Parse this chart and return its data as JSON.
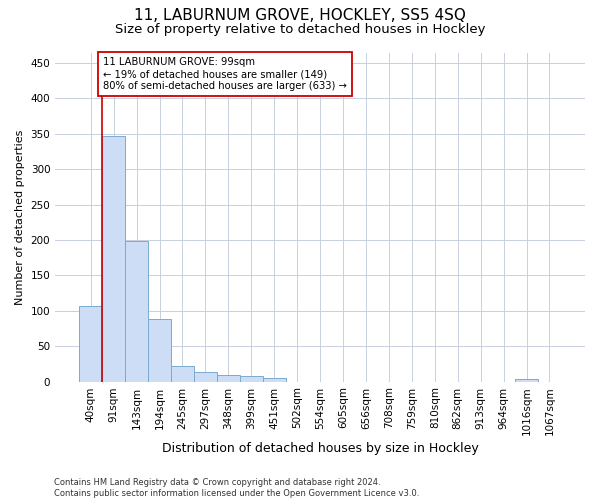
{
  "title": "11, LABURNUM GROVE, HOCKLEY, SS5 4SQ",
  "subtitle": "Size of property relative to detached houses in Hockley",
  "xlabel": "Distribution of detached houses by size in Hockley",
  "ylabel": "Number of detached properties",
  "bar_labels": [
    "40sqm",
    "91sqm",
    "143sqm",
    "194sqm",
    "245sqm",
    "297sqm",
    "348sqm",
    "399sqm",
    "451sqm",
    "502sqm",
    "554sqm",
    "605sqm",
    "656sqm",
    "708sqm",
    "759sqm",
    "810sqm",
    "862sqm",
    "913sqm",
    "964sqm",
    "1016sqm",
    "1067sqm"
  ],
  "bar_values": [
    107,
    347,
    199,
    88,
    22,
    14,
    9,
    8,
    5,
    0,
    0,
    0,
    0,
    0,
    0,
    0,
    0,
    0,
    0,
    4,
    0
  ],
  "bar_color": "#ccddf5",
  "bar_edge_color": "#7aaad0",
  "vline_x": 0.5,
  "vline_color": "#cc0000",
  "annotation_line1": "11 LABURNUM GROVE: 99sqm",
  "annotation_line2": "← 19% of detached houses are smaller (149)",
  "annotation_line3": "80% of semi-detached houses are larger (633) →",
  "ylim": [
    0,
    465
  ],
  "yticks": [
    0,
    50,
    100,
    150,
    200,
    250,
    300,
    350,
    400,
    450
  ],
  "grid_color": "#c8d0e0",
  "footer_line1": "Contains HM Land Registry data © Crown copyright and database right 2024.",
  "footer_line2": "Contains public sector information licensed under the Open Government Licence v3.0.",
  "title_fontsize": 11,
  "subtitle_fontsize": 9.5,
  "xlabel_fontsize": 9,
  "ylabel_fontsize": 8,
  "tick_fontsize": 7.5,
  "footer_fontsize": 6.0
}
